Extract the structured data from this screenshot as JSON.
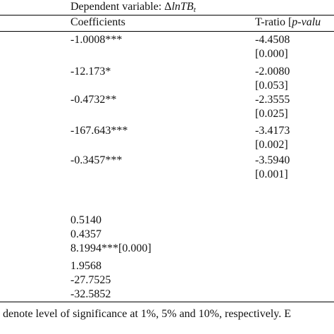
{
  "header": {
    "dependent_prefix": "Dependent variable: Δ",
    "dependent_var": "lnTB",
    "dependent_sub": "t"
  },
  "table": {
    "headers": [
      "Coefficients",
      {
        "text": "T-ratio [",
        "italic": "p-valu"
      }
    ],
    "rows": [
      [
        "-1.0008***",
        "-4.4508",
        "[0.000]"
      ],
      [
        "-12.173*",
        "-2.0080",
        "[0.053]"
      ],
      [
        "-0.4732**",
        "-2.3555",
        "[0.025]"
      ],
      [
        "-167.643***",
        "-3.4173",
        "[0.002]"
      ],
      [
        "-0.3457***",
        "-3.5940",
        "[0.001]"
      ]
    ],
    "stats": [
      "0.5140",
      "0.4357",
      "8.1994***[0.000]",
      "1.9568",
      "-27.7525",
      "-32.5852"
    ]
  },
  "footnote": "denote level of significance at 1%, 5% and 10%, respectively. E"
}
